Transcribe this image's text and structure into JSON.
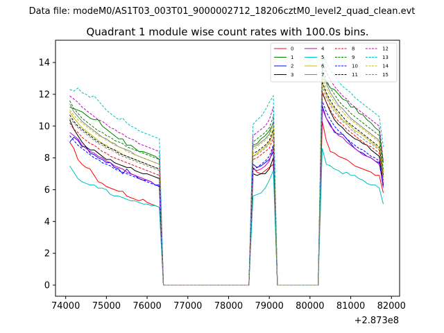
{
  "chart_data": {
    "type": "line",
    "suptitle": "Data file: modeM0/AS1T03_003T01_9000002712_18206cztM0_level2_quad_clean.evt",
    "title": "Quadrant 1 module wise count rates with 100.0s bins.",
    "xlabel": "",
    "ylabel": "",
    "x_offset_label": "+2.873e8",
    "xlim": [
      73750,
      82200
    ],
    "ylim": [
      -0.7,
      15.4
    ],
    "x_ticks": [
      74000,
      75000,
      76000,
      77000,
      78000,
      79000,
      80000,
      81000,
      82000
    ],
    "y_ticks": [
      0,
      2,
      4,
      6,
      8,
      10,
      12,
      14
    ],
    "x_tick_labels": [
      "74000",
      "75000",
      "76000",
      "77000",
      "78000",
      "79000",
      "80000",
      "81000",
      "82000"
    ],
    "y_tick_labels": [
      "0",
      "2",
      "4",
      "6",
      "8",
      "10",
      "12",
      "14"
    ],
    "legend_position": "top-right",
    "segments": [
      {
        "start": 74100,
        "end": 76300,
        "after": 76400
      },
      {
        "start": 78600,
        "end": 79100,
        "after": 79200
      },
      {
        "start": 80300,
        "end": 81800,
        "after": null
      }
    ],
    "series": [
      {
        "name": "0",
        "color": "#ff0000",
        "dashed": false,
        "seg_values": [
          [
            9.0,
            8.6,
            7.9,
            7.6,
            7.4,
            7.3,
            6.9,
            6.5,
            6.4,
            6.2,
            6.1,
            6.0,
            5.9,
            5.9,
            5.6,
            5.5,
            5.4,
            5.3,
            5.4,
            5.2,
            5.1,
            5.0,
            4.9
          ],
          [
            7.4,
            7.1,
            7.0,
            7.2,
            7.4,
            7.6
          ],
          [
            10.3,
            9.1,
            8.4,
            8.3,
            8.1,
            8.0,
            7.9,
            7.7,
            7.5,
            7.4,
            7.3,
            7.2,
            7.1,
            6.9,
            6.9,
            5.8
          ]
        ]
      },
      {
        "name": "1",
        "color": "#008000",
        "dashed": false,
        "seg_values": [
          [
            11.2,
            11.1,
            11.0,
            10.9,
            10.7,
            10.5,
            10.4,
            10.4,
            10.0,
            9.8,
            9.6,
            9.4,
            9.2,
            9.2,
            8.8,
            8.8,
            8.6,
            8.4,
            8.4,
            8.3,
            8.2,
            8.1,
            7.9
          ],
          [
            8.8,
            8.9,
            9.2,
            9.4,
            9.7,
            10.2
          ],
          [
            13.0,
            12.8,
            12.4,
            12.3,
            12.0,
            11.7,
            11.6,
            11.2,
            11.2,
            10.8,
            10.7,
            10.4,
            10.2,
            9.9,
            9.7,
            7.7
          ]
        ]
      },
      {
        "name": "2",
        "color": "#0000ff",
        "dashed": false,
        "seg_values": [
          [
            9.0,
            9.3,
            9.1,
            8.7,
            8.7,
            8.3,
            8.2,
            8.0,
            7.9,
            7.7,
            7.7,
            7.4,
            7.3,
            7.0,
            7.3,
            7.0,
            6.9,
            6.7,
            6.6,
            6.6,
            6.5,
            6.3,
            6.3
          ],
          [
            7.6,
            7.4,
            7.5,
            7.7,
            7.9,
            8.4
          ],
          [
            11.3,
            10.5,
            10.1,
            9.6,
            9.5,
            9.5,
            9.2,
            8.9,
            8.6,
            8.4,
            8.3,
            8.1,
            8.0,
            7.8,
            7.7,
            6.2
          ]
        ]
      },
      {
        "name": "3",
        "color": "#000000",
        "dashed": false,
        "seg_values": [
          [
            10.4,
            9.8,
            9.4,
            9.0,
            8.7,
            8.5,
            8.5,
            8.3,
            8.1,
            7.9,
            7.9,
            7.7,
            7.6,
            7.5,
            7.4,
            7.4,
            7.2,
            7.1,
            7.0,
            7.0,
            6.9,
            6.8,
            6.7
          ],
          [
            7.0,
            6.9,
            7.0,
            7.0,
            7.3,
            8.0
          ],
          [
            12.1,
            11.5,
            10.9,
            10.4,
            10.1,
            9.9,
            9.6,
            9.4,
            9.2,
            9.1,
            8.9,
            8.8,
            8.5,
            8.3,
            8.1,
            6.3
          ]
        ]
      },
      {
        "name": "4",
        "color": "#bf00bf",
        "dashed": false,
        "seg_values": [
          [
            9.6,
            9.4,
            9.2,
            8.8,
            8.6,
            8.4,
            8.3,
            8.1,
            8.0,
            7.8,
            7.7,
            7.5,
            7.4,
            7.3,
            7.1,
            7.0,
            6.9,
            6.8,
            6.7,
            6.6,
            6.5,
            6.3,
            6.2
          ],
          [
            7.3,
            7.2,
            7.3,
            7.5,
            7.8,
            8.7
          ],
          [
            11.1,
            10.5,
            10.0,
            9.7,
            9.4,
            9.3,
            9.0,
            8.8,
            8.6,
            8.4,
            8.2,
            8.1,
            8.0,
            7.8,
            7.6,
            6.4
          ]
        ]
      },
      {
        "name": "5",
        "color": "#00bfbf",
        "dashed": false,
        "seg_values": [
          [
            7.5,
            7.1,
            6.7,
            6.5,
            6.4,
            6.3,
            6.3,
            6.1,
            6.1,
            6.0,
            5.7,
            5.6,
            5.6,
            5.5,
            5.4,
            5.3,
            5.3,
            5.2,
            5.1,
            5.1,
            5.0,
            5.0,
            4.9
          ],
          [
            5.6,
            5.7,
            5.8,
            6.1,
            6.6,
            7.2
          ],
          [
            8.6,
            7.6,
            7.5,
            7.3,
            7.2,
            7.0,
            7.1,
            6.9,
            6.9,
            6.7,
            6.6,
            6.4,
            6.3,
            6.3,
            6.1,
            5.1
          ]
        ]
      },
      {
        "name": "6",
        "color": "#bfbf00",
        "dashed": false,
        "seg_values": [
          [
            10.9,
            10.5,
            10.2,
            9.9,
            9.7,
            9.5,
            9.3,
            9.1,
            8.9,
            8.8,
            8.6,
            8.5,
            8.4,
            8.2,
            8.1,
            8.0,
            7.9,
            7.8,
            7.7,
            7.6,
            7.5,
            7.4,
            7.3
          ],
          [
            8.1,
            8.3,
            8.5,
            8.7,
            9.0,
            9.6
          ],
          [
            12.7,
            12.0,
            11.4,
            11.1,
            10.7,
            10.4,
            10.2,
            10.0,
            9.7,
            9.6,
            9.4,
            9.2,
            9.0,
            8.8,
            8.6,
            6.8
          ]
        ]
      },
      {
        "name": "7",
        "color": "#808080",
        "dashed": false,
        "seg_values": [
          [
            11.4,
            10.9,
            10.6,
            10.3,
            10.1,
            9.9,
            9.7,
            9.5,
            9.3,
            9.2,
            9.0,
            8.9,
            8.7,
            8.6,
            8.5,
            8.4,
            8.2,
            8.1,
            8.0,
            7.9,
            7.8,
            7.7,
            7.6
          ],
          [
            8.7,
            8.8,
            9.0,
            9.2,
            9.5,
            10.3
          ],
          [
            13.4,
            12.7,
            12.1,
            11.7,
            11.3,
            11.1,
            10.8,
            10.5,
            10.3,
            10.1,
            9.9,
            9.7,
            9.5,
            9.3,
            9.1,
            7.1
          ]
        ]
      },
      {
        "name": "8",
        "color": "#ff0000",
        "dashed": true,
        "seg_values": [
          [
            10.2,
            9.8,
            9.6,
            9.3,
            9.1,
            8.9,
            8.8,
            8.6,
            8.4,
            8.3,
            8.1,
            8.0,
            7.9,
            7.8,
            7.7,
            7.6,
            7.5,
            7.4,
            7.3,
            7.2,
            7.1,
            7.0,
            6.9
          ],
          [
            7.9,
            8.0,
            8.2,
            8.4,
            8.6,
            9.3
          ],
          [
            12.2,
            11.5,
            11.0,
            10.6,
            10.3,
            10.1,
            9.8,
            9.6,
            9.4,
            9.2,
            9.0,
            8.8,
            8.7,
            8.5,
            8.3,
            6.6
          ]
        ]
      },
      {
        "name": "9",
        "color": "#008000",
        "dashed": true,
        "seg_values": [
          [
            11.6,
            11.1,
            10.8,
            10.5,
            10.3,
            10.1,
            9.9,
            9.7,
            9.6,
            9.4,
            9.3,
            9.1,
            9.0,
            8.9,
            8.7,
            8.6,
            8.5,
            8.4,
            8.3,
            8.2,
            8.1,
            8.0,
            7.9
          ],
          [
            9.0,
            9.2,
            9.4,
            9.6,
            9.9,
            10.6
          ],
          [
            13.6,
            12.9,
            12.4,
            12.0,
            11.6,
            11.3,
            11.1,
            10.8,
            10.6,
            10.4,
            10.2,
            10.0,
            9.8,
            9.6,
            9.4,
            7.3
          ]
        ]
      },
      {
        "name": "10",
        "color": "#0000ff",
        "dashed": true,
        "seg_values": [
          [
            9.4,
            9.1,
            8.8,
            8.6,
            8.4,
            8.2,
            8.0,
            7.9,
            7.7,
            7.6,
            7.5,
            7.3,
            7.2,
            7.1,
            7.0,
            6.9,
            6.8,
            6.7,
            6.6,
            6.5,
            6.4,
            6.3,
            6.2
          ],
          [
            7.3,
            7.4,
            7.6,
            7.8,
            8.1,
            8.8
          ],
          [
            11.6,
            10.9,
            10.4,
            10.0,
            9.7,
            9.5,
            9.2,
            9.0,
            8.8,
            8.6,
            8.5,
            8.3,
            8.1,
            8.0,
            7.8,
            6.1
          ]
        ]
      },
      {
        "name": "11",
        "color": "#000000",
        "dashed": true,
        "seg_values": [
          [
            10.7,
            10.3,
            10.0,
            9.8,
            9.6,
            9.4,
            9.2,
            9.0,
            8.9,
            8.7,
            8.6,
            8.5,
            8.3,
            8.2,
            8.1,
            8.0,
            7.9,
            7.8,
            7.7,
            7.6,
            7.5,
            7.4,
            7.3
          ],
          [
            8.3,
            8.4,
            8.6,
            8.8,
            9.1,
            9.8
          ],
          [
            12.8,
            12.1,
            11.6,
            11.2,
            10.9,
            10.6,
            10.3,
            10.1,
            9.9,
            9.7,
            9.5,
            9.3,
            9.1,
            8.9,
            8.7,
            6.9
          ]
        ]
      },
      {
        "name": "12",
        "color": "#bf00bf",
        "dashed": true,
        "seg_values": [
          [
            11.9,
            11.7,
            11.5,
            11.2,
            11.0,
            10.8,
            10.6,
            10.4,
            10.3,
            10.1,
            9.9,
            9.8,
            9.6,
            9.5,
            9.3,
            9.2,
            9.1,
            8.9,
            8.8,
            8.7,
            8.6,
            8.5,
            8.4
          ],
          [
            9.4,
            9.6,
            9.8,
            10.0,
            10.4,
            11.2
          ],
          [
            14.0,
            13.4,
            12.9,
            12.5,
            12.2,
            11.9,
            11.7,
            11.4,
            11.2,
            11.0,
            10.8,
            10.6,
            10.4,
            10.2,
            10.0,
            7.8
          ]
        ]
      },
      {
        "name": "13",
        "color": "#00bfbf",
        "dashed": true,
        "seg_values": [
          [
            12.3,
            12.2,
            12.4,
            12.1,
            12.0,
            11.8,
            11.9,
            11.6,
            11.3,
            11.0,
            10.8,
            10.6,
            10.4,
            10.5,
            10.2,
            10.0,
            9.9,
            9.7,
            9.6,
            9.5,
            9.4,
            9.3,
            9.2
          ],
          [
            10.1,
            10.4,
            10.6,
            11.0,
            11.5,
            11.9
          ],
          [
            14.5,
            14.0,
            13.5,
            13.2,
            12.8,
            12.5,
            12.3,
            12.1,
            11.8,
            11.6,
            11.4,
            11.2,
            11.0,
            10.8,
            10.6,
            8.7
          ]
        ]
      },
      {
        "name": "14",
        "color": "#bfbf00",
        "dashed": true,
        "seg_values": [
          [
            11.0,
            10.7,
            10.4,
            10.2,
            10.0,
            9.8,
            9.6,
            9.4,
            9.3,
            9.1,
            9.0,
            8.8,
            8.7,
            8.6,
            8.4,
            8.3,
            8.2,
            8.1,
            8.0,
            7.9,
            7.8,
            7.7,
            7.6
          ],
          [
            8.5,
            8.7,
            8.9,
            9.1,
            9.4,
            10.1
          ],
          [
            13.1,
            12.4,
            11.9,
            11.5,
            11.2,
            10.9,
            10.6,
            10.4,
            10.2,
            10.0,
            9.8,
            9.6,
            9.4,
            9.2,
            9.0,
            7.1
          ]
        ]
      },
      {
        "name": "15",
        "color": "#808080",
        "dashed": true,
        "seg_values": [
          [
            10.5,
            10.2,
            9.9,
            9.7,
            9.5,
            9.3,
            9.1,
            8.9,
            8.8,
            8.6,
            8.5,
            8.4,
            8.2,
            8.1,
            8.0,
            7.9,
            7.8,
            7.7,
            7.6,
            7.5,
            7.4,
            7.3,
            7.2
          ],
          [
            8.1,
            8.2,
            8.4,
            8.6,
            8.9,
            9.6
          ],
          [
            12.5,
            11.8,
            11.3,
            10.9,
            10.6,
            10.3,
            10.1,
            9.8,
            9.6,
            9.4,
            9.2,
            9.0,
            8.9,
            8.7,
            8.5,
            6.7
          ]
        ]
      }
    ]
  }
}
